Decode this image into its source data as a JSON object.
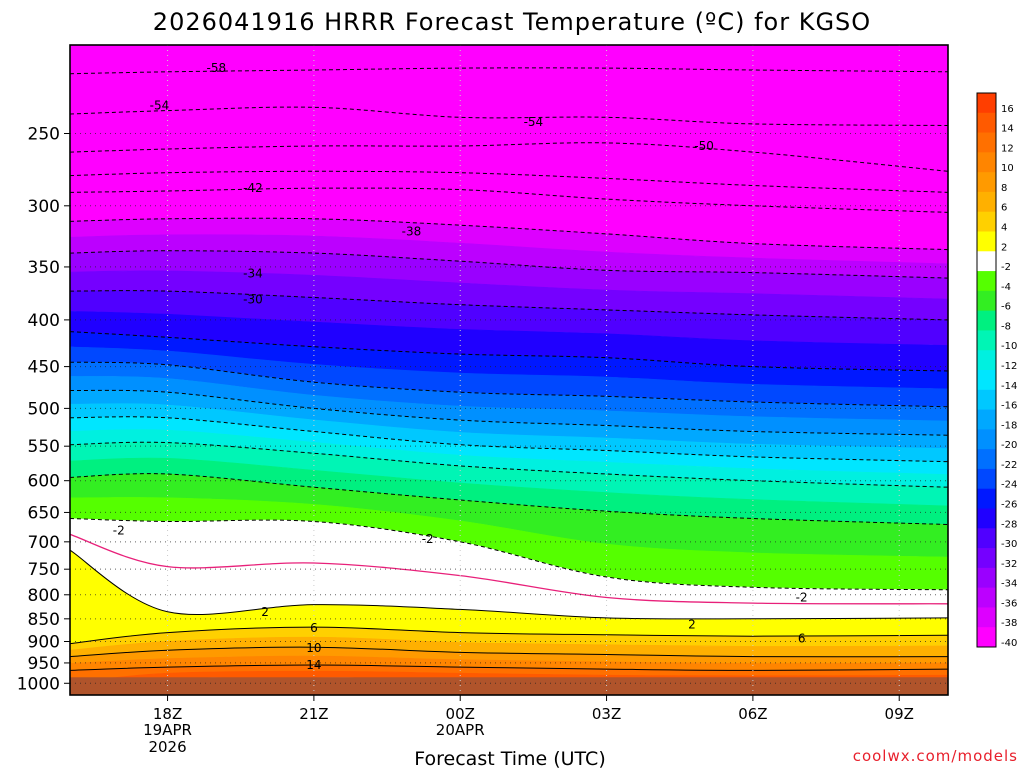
{
  "title": "2026041916 HRRR Forecast Temperature (ºC) for KGSO",
  "credit": "coolwx.com/models",
  "chart_data": {
    "type": "heatmap",
    "title": "2026041916 HRRR Forecast Temperature (ºC) for KGSO",
    "xlabel": "Forecast Time (UTC)",
    "ylabel": "",
    "y_scale": "log-pressure",
    "y_ticks": [
      250,
      300,
      350,
      400,
      450,
      500,
      550,
      600,
      650,
      700,
      750,
      800,
      850,
      900,
      950,
      1000
    ],
    "y_range": [
      1030,
      200
    ],
    "x_range": [
      "2026-04-19T16:00Z",
      "2026-04-20T10:00Z"
    ],
    "x_ticks": [
      {
        "time": "2026-04-19T18:00Z",
        "label": "18Z",
        "sub1": "19APR",
        "sub2": "2026"
      },
      {
        "time": "2026-04-19T21:00Z",
        "label": "21Z",
        "sub1": "",
        "sub2": ""
      },
      {
        "time": "2026-04-20T00:00Z",
        "label": "00Z",
        "sub1": "20APR",
        "sub2": ""
      },
      {
        "time": "2026-04-20T03:00Z",
        "label": "03Z",
        "sub1": "",
        "sub2": ""
      },
      {
        "time": "2026-04-20T06:00Z",
        "label": "06Z",
        "sub1": "",
        "sub2": ""
      },
      {
        "time": "2026-04-20T09:00Z",
        "label": "09Z",
        "sub1": "",
        "sub2": ""
      }
    ],
    "grid": true,
    "colorbar": {
      "placement": "right",
      "levels": [
        16,
        14,
        12,
        10,
        8,
        6,
        4,
        2,
        -2,
        -4,
        -6,
        -8,
        -10,
        -12,
        -14,
        -16,
        -18,
        -20,
        -22,
        -24,
        -26,
        -28,
        -30,
        -32,
        -34,
        -36,
        -38,
        -40
      ],
      "colors": [
        "#ff3e00",
        "#ff5a00",
        "#ff7000",
        "#ff8500",
        "#ff9a00",
        "#ffb000",
        "#ffd000",
        "#ffff00",
        "#ffffff",
        "#55ff00",
        "#33ee22",
        "#00f080",
        "#00f5b5",
        "#00f0e0",
        "#00e6ff",
        "#00c8ff",
        "#00a8ff",
        "#0090ff",
        "#0070ff",
        "#0048ff",
        "#0018ff",
        "#2000ff",
        "#5000ff",
        "#7500ff",
        "#9a00ff",
        "#bc00ff",
        "#dd00ff",
        "#ff00ff"
      ]
    },
    "isotherm_profiles": [
      {
        "time": "2026-04-19T16:00Z",
        "p_at_temp": {
          "-58": 215,
          "-54": 238,
          "-50": 262,
          "-46": 278,
          "-42": 290,
          "-38": 312,
          "-34": 338,
          "-30": 372,
          "-26": 412,
          "-22": 445,
          "-18": 478,
          "-14": 512,
          "-10": 548,
          "-6": 595,
          "-2": 660,
          "2": 715,
          "6": 905,
          "10": 935,
          "14": 968,
          "18": 1030
        }
      },
      {
        "time": "2026-04-19T18:00Z",
        "p_at_temp": {
          "-58": 214,
          "-54": 236,
          "-50": 260,
          "-46": 276,
          "-42": 289,
          "-38": 310,
          "-34": 336,
          "-30": 372,
          "-26": 418,
          "-22": 448,
          "-18": 480,
          "-14": 512,
          "-10": 545,
          "-6": 590,
          "-2": 665,
          "2": 835,
          "6": 880,
          "10": 920,
          "14": 960,
          "18": 990
        }
      },
      {
        "time": "2026-04-19T21:00Z",
        "p_at_temp": {
          "-58": 213,
          "-54": 234,
          "-50": 258,
          "-46": 275,
          "-42": 287,
          "-38": 310,
          "-34": 338,
          "-30": 378,
          "-26": 428,
          "-22": 468,
          "-18": 500,
          "-14": 530,
          "-10": 560,
          "-6": 610,
          "-2": 665,
          "2": 820,
          "6": 868,
          "10": 913,
          "14": 955,
          "18": 985
        }
      },
      {
        "time": "2026-04-20T00:00Z",
        "p_at_temp": {
          "-58": 212,
          "-54": 240,
          "-50": 258,
          "-46": 276,
          "-42": 288,
          "-38": 315,
          "-34": 345,
          "-30": 385,
          "-26": 436,
          "-22": 480,
          "-18": 515,
          "-14": 548,
          "-10": 578,
          "-6": 630,
          "-2": 700,
          "2": 830,
          "6": 880,
          "10": 925,
          "14": 960,
          "18": 990
        }
      },
      {
        "time": "2026-04-20T03:00Z",
        "p_at_temp": {
          "-58": 212,
          "-54": 240,
          "-50": 256,
          "-46": 280,
          "-42": 295,
          "-38": 322,
          "-34": 353,
          "-30": 390,
          "-26": 440,
          "-22": 485,
          "-18": 522,
          "-14": 556,
          "-10": 590,
          "-6": 648,
          "-2": 765,
          "2": 848,
          "6": 885,
          "10": 930,
          "14": 965,
          "18": 995
        }
      },
      {
        "time": "2026-04-20T06:00Z",
        "p_at_temp": {
          "-58": 213,
          "-54": 244,
          "-50": 262,
          "-46": 285,
          "-42": 300,
          "-38": 330,
          "-34": 355,
          "-30": 395,
          "-26": 450,
          "-22": 492,
          "-18": 530,
          "-14": 565,
          "-10": 600,
          "-6": 660,
          "-2": 785,
          "2": 850,
          "6": 888,
          "10": 935,
          "14": 968,
          "18": 995
        }
      },
      {
        "time": "2026-04-20T10:00Z",
        "p_at_temp": {
          "-58": 214,
          "-54": 245,
          "-50": 275,
          "-46": 290,
          "-42": 305,
          "-38": 335,
          "-34": 360,
          "-30": 400,
          "-26": 455,
          "-22": 498,
          "-18": 535,
          "-14": 572,
          "-10": 610,
          "-6": 670,
          "-2": 790,
          "2": 848,
          "6": 886,
          "10": 935,
          "14": 965,
          "18": 995
        }
      }
    ],
    "contour_labels": [
      {
        "text": "-58",
        "time": "2026-04-19T19:00Z",
        "p": 212
      },
      {
        "text": "-54",
        "time": "2026-04-19T17:50Z",
        "p": 233
      },
      {
        "text": "-54",
        "time": "2026-04-20T01:30Z",
        "p": 243
      },
      {
        "text": "-50",
        "time": "2026-04-20T05:00Z",
        "p": 258
      },
      {
        "text": "-42",
        "time": "2026-04-19T19:45Z",
        "p": 287
      },
      {
        "text": "-38",
        "time": "2026-04-19T23:00Z",
        "p": 320
      },
      {
        "text": "-34",
        "time": "2026-04-19T19:45Z",
        "p": 356
      },
      {
        "text": "-30",
        "time": "2026-04-19T19:45Z",
        "p": 380
      },
      {
        "text": "-2",
        "time": "2026-04-19T17:00Z",
        "p": 680
      },
      {
        "text": "-2",
        "time": "2026-04-19T23:20Z",
        "p": 695
      },
      {
        "text": "-2",
        "time": "2026-04-20T07:00Z",
        "p": 805
      },
      {
        "text": "2",
        "time": "2026-04-19T20:00Z",
        "p": 835
      },
      {
        "text": "2",
        "time": "2026-04-20T04:45Z",
        "p": 862
      },
      {
        "text": "6",
        "time": "2026-04-19T21:00Z",
        "p": 870
      },
      {
        "text": "6",
        "time": "2026-04-20T07:00Z",
        "p": 893
      },
      {
        "text": "10",
        "time": "2026-04-19T21:00Z",
        "p": 915
      },
      {
        "text": "14",
        "time": "2026-04-19T21:00Z",
        "p": 955
      }
    ],
    "ground": {
      "from_p": 985,
      "color": "#b0542b"
    }
  }
}
